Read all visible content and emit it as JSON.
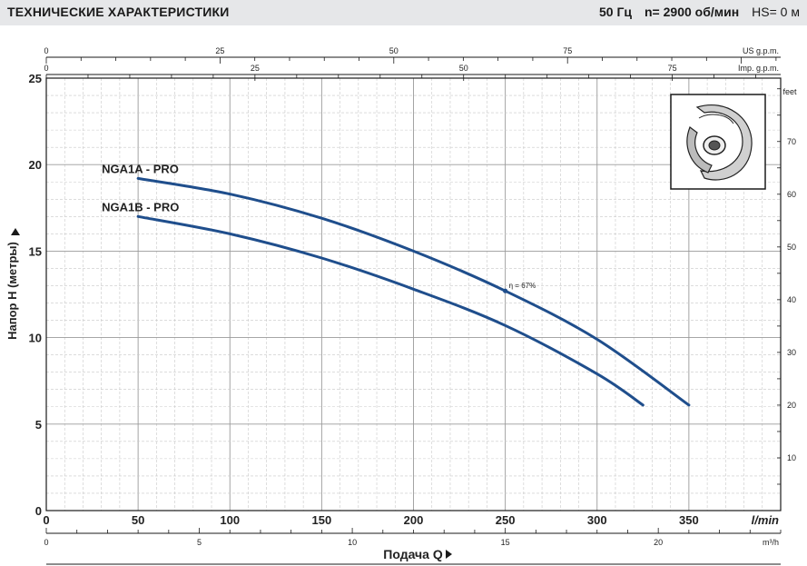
{
  "header": {
    "title": "ТЕХНИЧЕСКИЕ ХАРАКТЕРИСТИКИ",
    "frequency": "50 Гц",
    "speed": "n= 2900  об/мин",
    "hs": "HS= 0 м"
  },
  "chart_data": {
    "type": "line",
    "xlabel": "Подача Q",
    "ylabel": "Напор H (метры)",
    "x_primary_unit": "l/min",
    "xlim": [
      0,
      400
    ],
    "ylim": [
      0,
      25
    ],
    "x_ticks": [
      0,
      50,
      100,
      150,
      200,
      250,
      300,
      350
    ],
    "y_ticks": [
      0,
      5,
      10,
      15,
      20,
      25
    ],
    "secondary_axes": {
      "m3h": {
        "unit": "m³/h",
        "ticks": [
          0,
          5,
          10,
          15,
          20
        ]
      },
      "us_gpm": {
        "unit": "US g.p.m.",
        "ticks": [
          0,
          25,
          50,
          75
        ]
      },
      "imp_gpm": {
        "unit": "Imp. g.p.m.",
        "ticks": [
          0,
          25,
          50,
          75
        ]
      },
      "feet": {
        "unit": "feet",
        "ticks": [
          10,
          20,
          30,
          40,
          50,
          60,
          70
        ]
      }
    },
    "grid": true,
    "series": [
      {
        "name": "NGA1A - PRO",
        "color": "#1f4e8c",
        "points": [
          [
            50,
            19.2
          ],
          [
            100,
            18.3
          ],
          [
            150,
            16.9
          ],
          [
            200,
            15.0
          ],
          [
            250,
            12.7
          ],
          [
            300,
            9.9
          ],
          [
            350,
            6.1
          ]
        ]
      },
      {
        "name": "NGA1B - PRO",
        "color": "#1f4e8c",
        "points": [
          [
            50,
            17.0
          ],
          [
            100,
            16.0
          ],
          [
            150,
            14.6
          ],
          [
            200,
            12.8
          ],
          [
            250,
            10.7
          ],
          [
            300,
            7.9
          ],
          [
            325,
            6.1
          ]
        ]
      }
    ],
    "annotations": [
      {
        "text": "η = 67%",
        "x": 250,
        "y": 12.7
      }
    ]
  }
}
